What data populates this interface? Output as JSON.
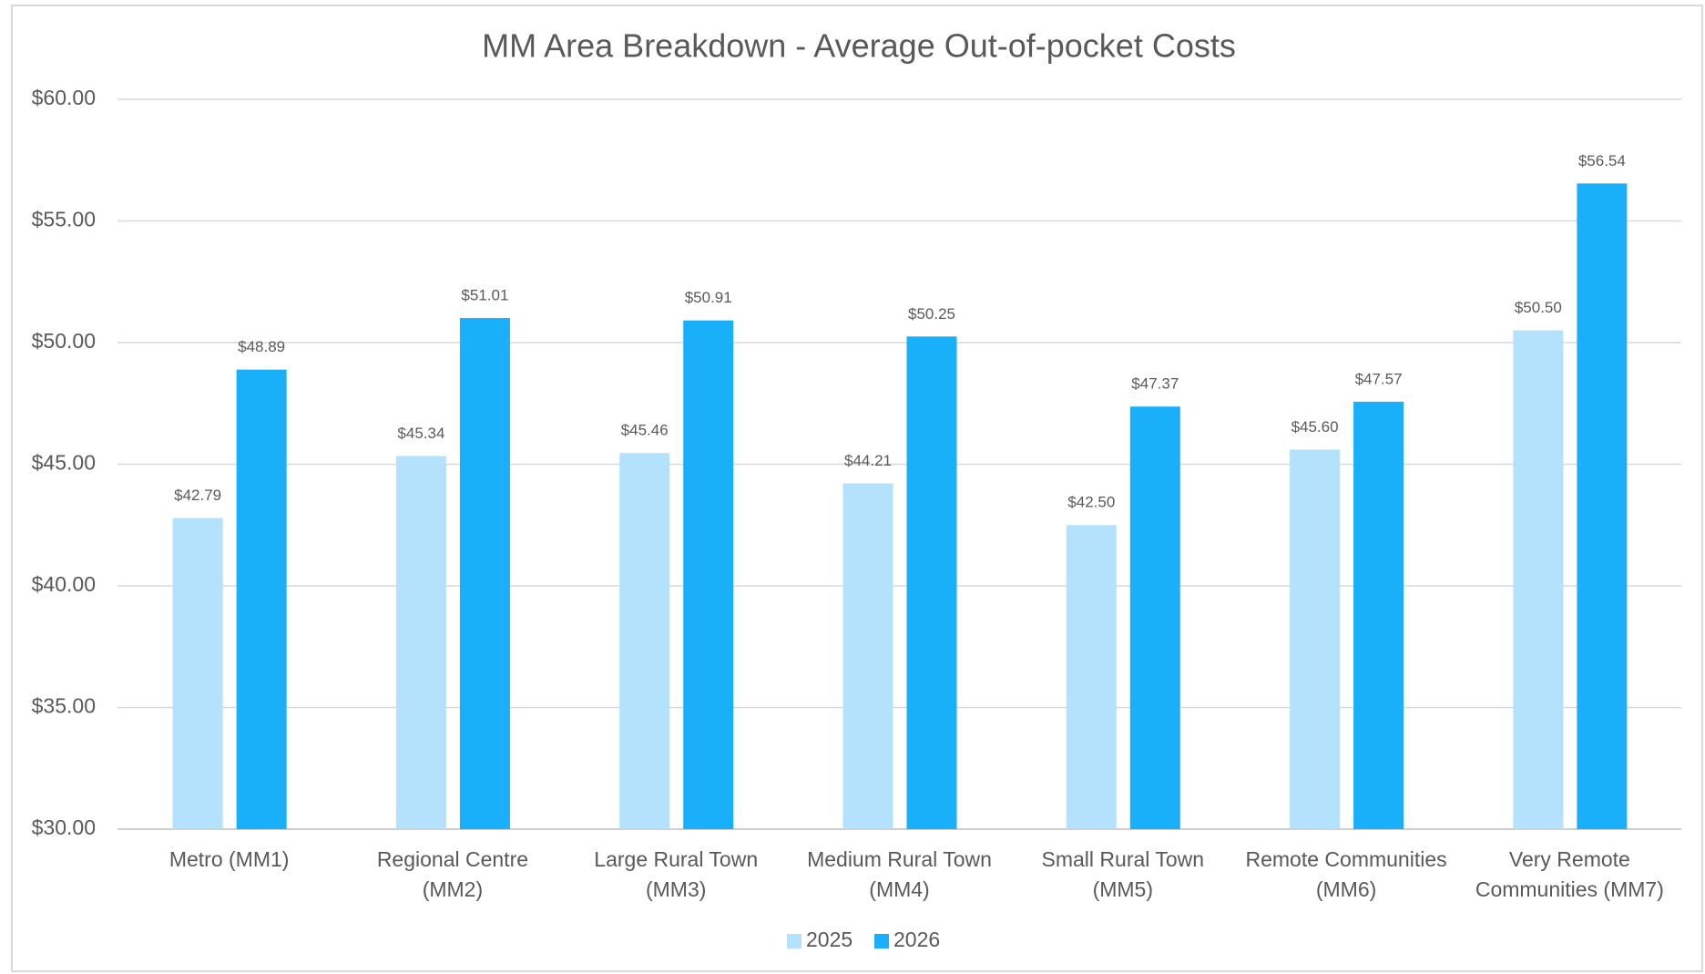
{
  "chart_data": {
    "type": "bar",
    "title": "MM Area Breakdown - Average Out-of-pocket Costs",
    "categories": [
      "Metro (MM1)",
      "Regional Centre (MM2)",
      "Large Rural Town (MM3)",
      "Medium Rural Town (MM4)",
      "Small Rural Town (MM5)",
      "Remote Communities (MM6)",
      "Very Remote Communities (MM7)"
    ],
    "series": [
      {
        "name": "2025",
        "color": "#b4e1fb",
        "values": [
          42.79,
          45.34,
          45.46,
          44.21,
          42.5,
          45.6,
          50.5
        ],
        "value_labels": [
          "$42.79",
          "$45.34",
          "$45.46",
          "$44.21",
          "$42.50",
          "$45.60",
          "$50.50"
        ]
      },
      {
        "name": "2026",
        "color": "#1aaff9",
        "values": [
          48.89,
          51.01,
          50.91,
          50.25,
          47.37,
          47.57,
          56.54
        ],
        "value_labels": [
          "$48.89",
          "$51.01",
          "$50.91",
          "$50.25",
          "$47.37",
          "$47.57",
          "$56.54"
        ]
      }
    ],
    "ylim": [
      30,
      60
    ],
    "yticks": [
      {
        "value": 30,
        "label": "$30.00"
      },
      {
        "value": 35,
        "label": "$35.00"
      },
      {
        "value": 40,
        "label": "$40.00"
      },
      {
        "value": 45,
        "label": "$45.00"
      },
      {
        "value": 50,
        "label": "$50.00"
      },
      {
        "value": 55,
        "label": "$55.00"
      },
      {
        "value": 60,
        "label": "$60.00"
      }
    ],
    "grid": true,
    "legend": "bottom"
  }
}
